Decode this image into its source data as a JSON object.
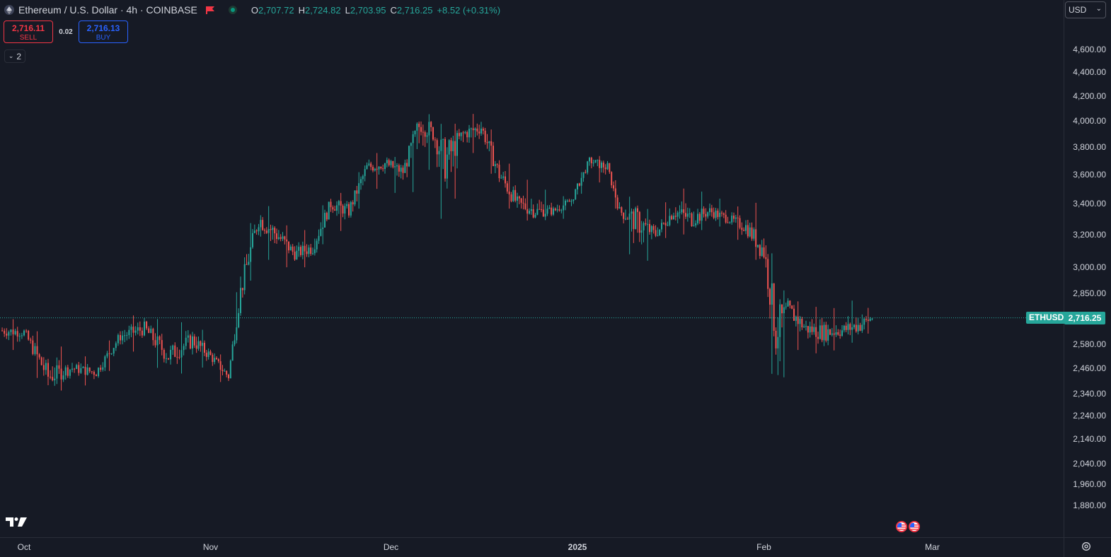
{
  "header": {
    "title": "Ethereum / U.S. Dollar · 4h · COINBASE",
    "ohlc": {
      "o_label": "O",
      "o": "2,707.72",
      "h_label": "H",
      "h": "2,724.82",
      "l_label": "L",
      "l": "2,703.95",
      "c_label": "C",
      "c": "2,716.25",
      "change": "+8.52 (+0.31%)"
    }
  },
  "trade": {
    "sell_price": "2,716.11",
    "sell_label": "SELL",
    "spread": "0.02",
    "buy_price": "2,716.13",
    "buy_label": "BUY"
  },
  "collapse": {
    "count": "2",
    "icon": "chevron-down-icon"
  },
  "currency": {
    "value": "USD"
  },
  "symbol_tag": "ETHUSD",
  "last_price": "2,716.25",
  "last_price_value": 2716.25,
  "colors": {
    "up": "#26a69a",
    "down": "#ef5350",
    "background": "#161a25",
    "grid": "#2a2e39"
  },
  "price_axis": {
    "ticks": [
      "4,600.00",
      "4,400.00",
      "4,200.00",
      "4,000.00",
      "3,800.00",
      "3,600.00",
      "3,400.00",
      "3,200.00",
      "3,000.00",
      "2,850.00",
      "2,580.00",
      "2,460.00",
      "2,340.00",
      "2,240.00",
      "2,140.00",
      "2,040.00",
      "1,960.00",
      "1,880.00"
    ],
    "scale": "log"
  },
  "time_axis": {
    "labels": [
      "Oct",
      "Nov",
      "Dec",
      "2025",
      "Feb",
      "Mar"
    ],
    "bold": [
      false,
      false,
      false,
      true,
      false,
      false
    ]
  },
  "chart_data": {
    "type": "candlestick",
    "interval": "4h",
    "x": [
      "2024-09-27",
      "2024-10-01",
      "2024-10-05",
      "2024-10-09",
      "2024-10-13",
      "2024-10-17",
      "2024-10-21",
      "2024-10-25",
      "2024-10-29",
      "2024-11-01",
      "2024-11-04",
      "2024-11-06",
      "2024-11-09",
      "2024-11-12",
      "2024-11-15",
      "2024-11-18",
      "2024-11-21",
      "2024-11-24",
      "2024-11-27",
      "2024-11-30",
      "2024-12-03",
      "2024-12-06",
      "2024-12-08",
      "2024-12-10",
      "2024-12-13",
      "2024-12-16",
      "2024-12-19",
      "2024-12-22",
      "2024-12-25",
      "2024-12-28",
      "2024-12-31",
      "2025-01-03",
      "2025-01-06",
      "2025-01-08",
      "2025-01-11",
      "2025-01-14",
      "2025-01-17",
      "2025-01-20",
      "2025-01-23",
      "2025-01-26",
      "2025-01-29",
      "2025-02-01",
      "2025-02-03",
      "2025-02-05",
      "2025-02-08",
      "2025-02-11",
      "2025-02-14",
      "2025-02-17",
      "2025-02-19"
    ],
    "close": [
      2650,
      2640,
      2420,
      2460,
      2440,
      2620,
      2660,
      2520,
      2600,
      2520,
      2420,
      2860,
      3300,
      3200,
      3080,
      3120,
      3400,
      3350,
      3650,
      3680,
      3620,
      4000,
      3900,
      3700,
      3900,
      3950,
      3600,
      3400,
      3350,
      3350,
      3420,
      3700,
      3650,
      3350,
      3280,
      3200,
      3350,
      3300,
      3350,
      3300,
      3250,
      3100,
      2650,
      2760,
      2660,
      2640,
      2650,
      2680,
      2716.25
    ],
    "high": [
      2720,
      2700,
      2600,
      2540,
      2500,
      2680,
      2770,
      2660,
      2720,
      2600,
      2470,
      3050,
      3450,
      3330,
      3200,
      3250,
      3500,
      3450,
      3750,
      3760,
      3700,
      4100,
      4030,
      3950,
      4000,
      4100,
      3800,
      3580,
      3550,
      3450,
      3450,
      3750,
      3720,
      3480,
      3420,
      3320,
      3480,
      3520,
      3450,
      3420,
      3350,
      3450,
      2900,
      2850,
      2770,
      2780,
      2760,
      2850,
      2730
    ],
    "low": [
      2550,
      2550,
      2300,
      2400,
      2360,
      2520,
      2560,
      2380,
      2480,
      2450,
      2350,
      2700,
      3100,
      3000,
      3000,
      3000,
      3250,
      3200,
      3500,
      3500,
      3450,
      3500,
      3700,
      3100,
      3700,
      3800,
      3450,
      3300,
      3280,
      3300,
      3300,
      3600,
      3500,
      3300,
      2900,
      3150,
      3200,
      3200,
      3250,
      3250,
      3100,
      3000,
      2150,
      2550,
      2550,
      2520,
      2570,
      2600,
      2650
    ],
    "ylim": [
      1840,
      4700
    ]
  }
}
